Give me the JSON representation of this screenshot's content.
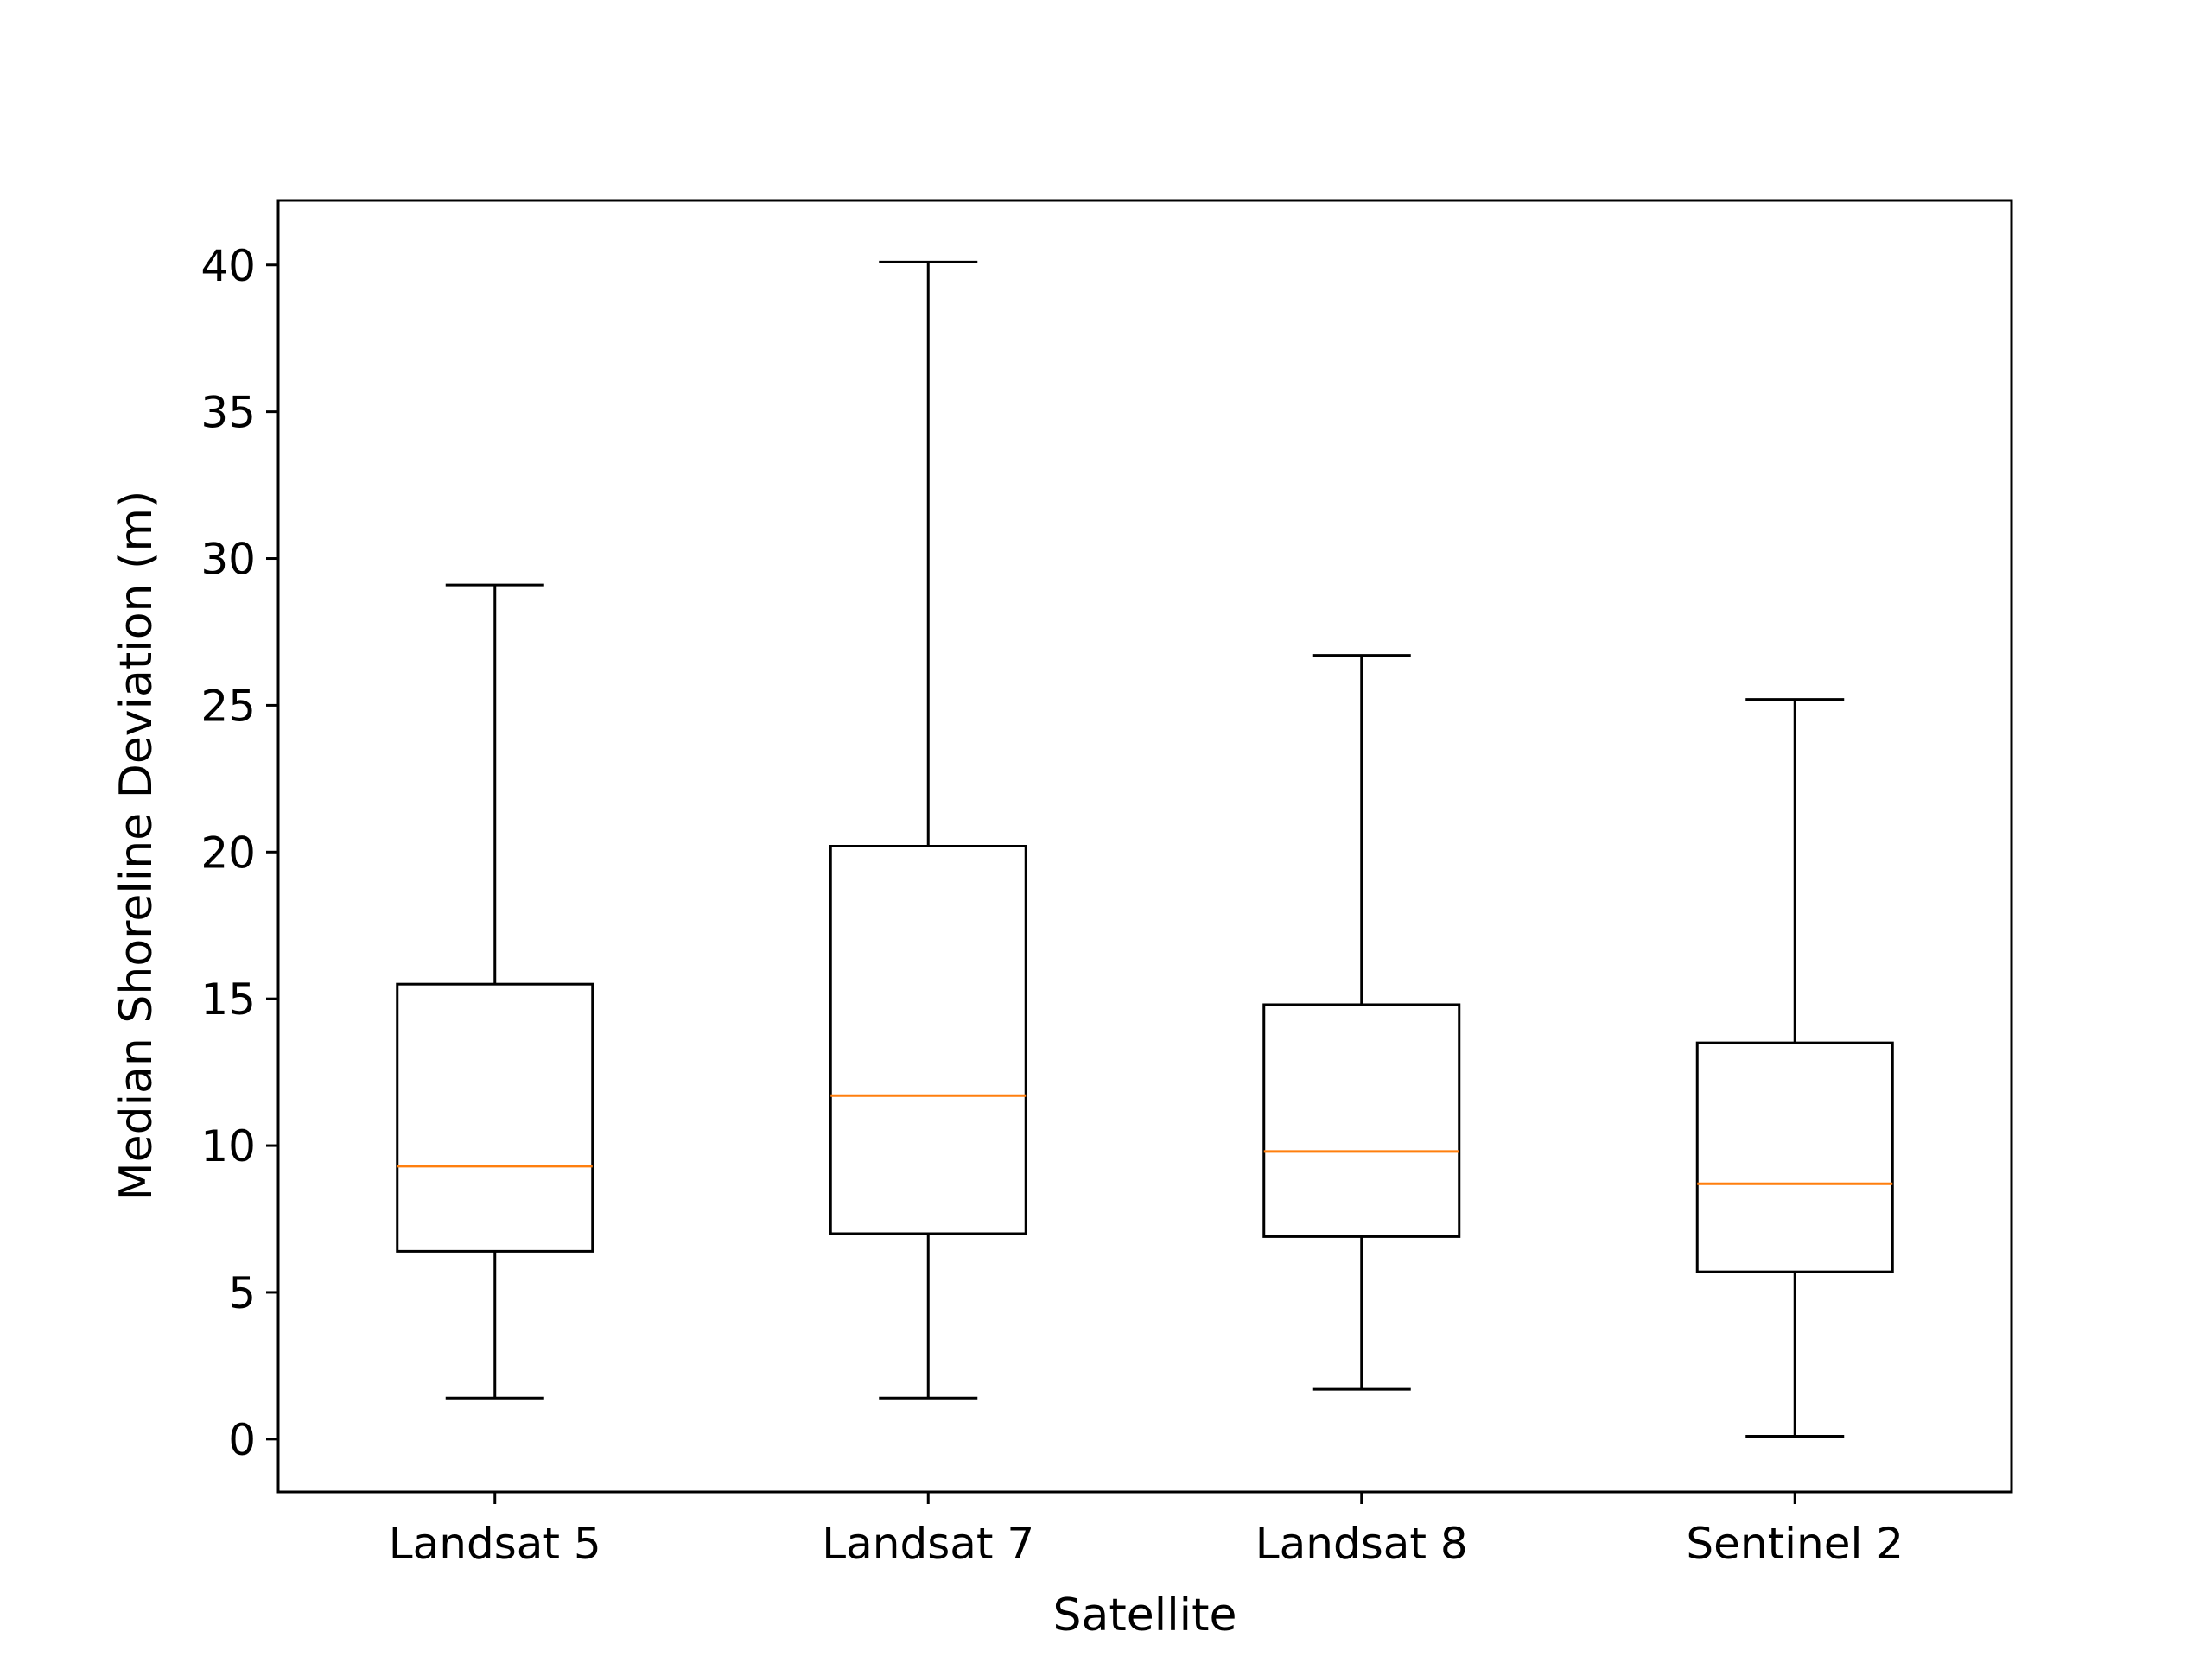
{
  "chart_data": {
    "type": "box",
    "xlabel": "Satellite",
    "ylabel": "Median Shoreline Deviation (m)",
    "ylim": [
      -1.8,
      42.2
    ],
    "yticks": [
      0,
      5,
      10,
      15,
      20,
      25,
      30,
      35,
      40
    ],
    "grid": false,
    "categories": [
      "Landsat 5",
      "Landsat 7",
      "Landsat 8",
      "Sentinel 2"
    ],
    "boxes": [
      {
        "category": "Landsat 5",
        "whisker_low": 1.4,
        "q1": 6.4,
        "median": 9.3,
        "q3": 15.5,
        "whisker_high": 29.1
      },
      {
        "category": "Landsat 7",
        "whisker_low": 1.4,
        "q1": 7.0,
        "median": 11.7,
        "q3": 20.2,
        "whisker_high": 40.1
      },
      {
        "category": "Landsat 8",
        "whisker_low": 1.7,
        "q1": 6.9,
        "median": 9.8,
        "q3": 14.8,
        "whisker_high": 26.7
      },
      {
        "category": "Sentinel 2",
        "whisker_low": 0.1,
        "q1": 5.7,
        "median": 8.7,
        "q3": 13.5,
        "whisker_high": 25.2
      }
    ],
    "colors": {
      "box": "#000000",
      "median": "#ff7f0e"
    }
  }
}
